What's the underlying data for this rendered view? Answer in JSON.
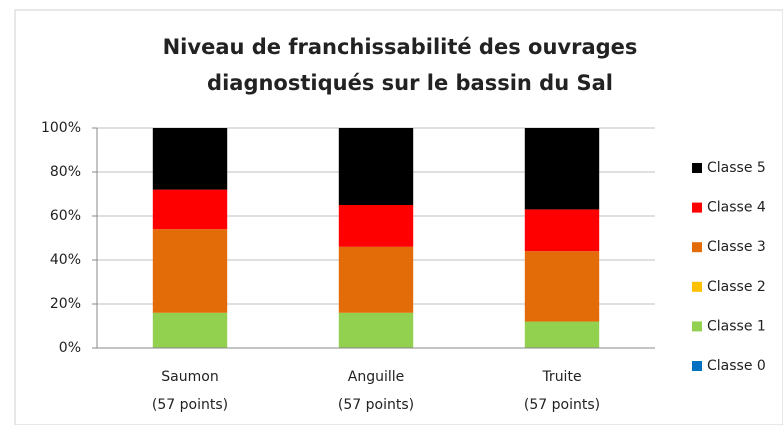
{
  "chart_data": {
    "type": "stacked_bar",
    "title": [
      "Niveau de franchissabilité des ouvrages",
      "diagnostiqués sur le bassin du Sal"
    ],
    "categories": [
      "Saumon",
      "Anguille",
      "Truite"
    ],
    "category_notes": [
      "(57 points)",
      "(57 points)",
      "(57 points)"
    ],
    "series": [
      {
        "name": "Classe 0",
        "color": "#0070c0",
        "values": [
          0,
          0,
          0
        ]
      },
      {
        "name": "Classe 1",
        "color": "#92d050",
        "values": [
          16,
          16,
          12
        ]
      },
      {
        "name": "Classe 2",
        "color": "#ffc000",
        "values": [
          0,
          0,
          0
        ]
      },
      {
        "name": "Classe 3",
        "color": "#e36c09",
        "values": [
          38,
          30,
          32
        ]
      },
      {
        "name": "Classe 4",
        "color": "#ff0000",
        "values": [
          18,
          19,
          19
        ]
      },
      {
        "name": "Classe 5",
        "color": "#000000",
        "values": [
          28,
          35,
          37
        ]
      }
    ],
    "ylim": [
      0,
      100
    ],
    "yticks": [
      {
        "value": 0,
        "label": "0%"
      },
      {
        "value": 20,
        "label": "20%"
      },
      {
        "value": 40,
        "label": "40%"
      },
      {
        "value": 60,
        "label": "60%"
      },
      {
        "value": 80,
        "label": "80%"
      },
      {
        "value": 100,
        "label": "100%"
      }
    ],
    "grid": true,
    "legend": "right"
  }
}
